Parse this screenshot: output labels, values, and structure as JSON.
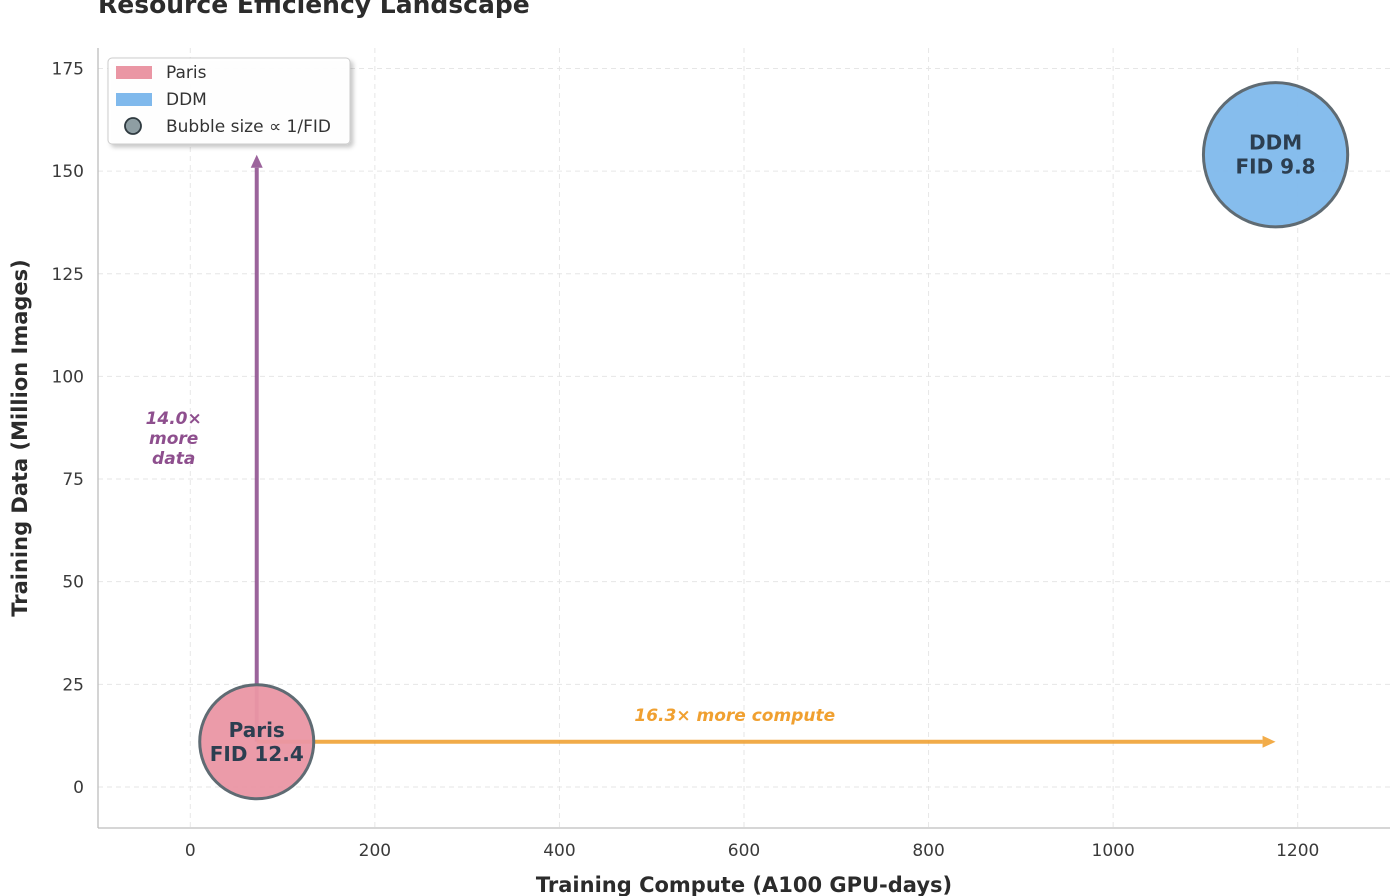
{
  "chart_data": {
    "type": "scatter",
    "title": "Resource Efficiency Landscape",
    "xlabel": "Training Compute (A100 GPU-days)",
    "ylabel": "Training Data (Million Images)",
    "xlim": [
      -100,
      1300
    ],
    "ylim": [
      -10,
      180
    ],
    "xticks": [
      0,
      200,
      400,
      600,
      800,
      1000,
      1200
    ],
    "yticks": [
      0,
      25,
      50,
      75,
      100,
      125,
      150,
      175
    ],
    "grid": true,
    "legend_position": "top-left",
    "series": [
      {
        "name": "Paris",
        "x": 72,
        "y": 11,
        "fid": 12.4,
        "label_lines": [
          "Paris",
          "FID 12.4"
        ],
        "color": "#ea96a4"
      },
      {
        "name": "DDM",
        "x": 1176,
        "y": 154,
        "fid": 9.8,
        "label_lines": [
          "DDM",
          "FID 9.8"
        ],
        "color": "#80b9ec"
      }
    ],
    "legend": [
      {
        "label": "Paris",
        "kind": "patch",
        "color": "#ea96a4"
      },
      {
        "label": "DDM",
        "kind": "patch",
        "color": "#80b9ec"
      },
      {
        "label": "Bubble size ∝ 1/FID",
        "kind": "circle",
        "color": "#8e9ea3"
      }
    ],
    "annotations": [
      {
        "kind": "vertical-arrow",
        "x": 72,
        "y_from": 11,
        "y_to": 154,
        "color": "#8e4f8e",
        "text_lines": [
          "14.0×",
          "more",
          "data"
        ],
        "text_x": -18,
        "text_y": 85
      },
      {
        "kind": "horizontal-arrow",
        "y": 11,
        "x_from": 72,
        "x_to": 1176,
        "color": "#f0a030",
        "text_lines": [
          "16.3× more compute"
        ],
        "text_x": 590,
        "text_y": 17.5
      }
    ]
  }
}
